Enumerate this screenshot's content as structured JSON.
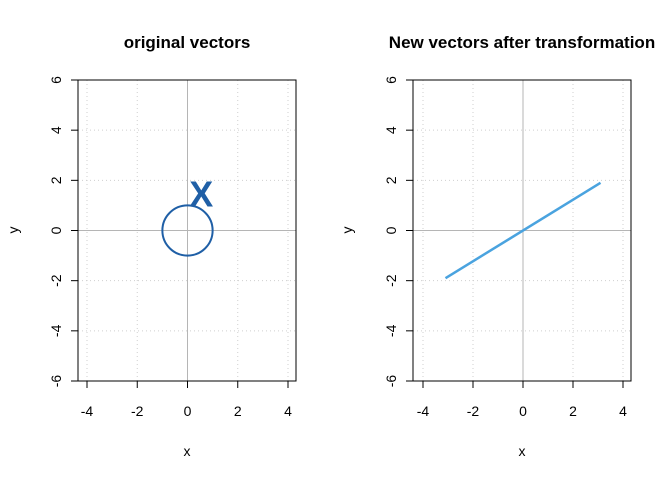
{
  "chart_data": [
    {
      "type": "line",
      "title": "original vectors",
      "xlabel": "x",
      "ylabel": "y",
      "xlim": [
        -4.4,
        4.4
      ],
      "ylim": [
        -6,
        6
      ],
      "xticks": [
        "-4",
        "-2",
        "0",
        "2",
        "4"
      ],
      "yticks": [
        "-6",
        "-4",
        "-2",
        "0",
        "2",
        "4",
        "6"
      ],
      "grid": true,
      "series": [
        {
          "shape": "circle",
          "center": [
            0,
            0
          ],
          "radius": 1,
          "color": "#1f5fa6"
        }
      ],
      "annotations": [
        {
          "text": "X",
          "x": 0.55,
          "y": 1.45,
          "color": "#1f5fa6"
        }
      ]
    },
    {
      "type": "line",
      "title": "New vectors after transformation",
      "xlabel": "x",
      "ylabel": "y",
      "xlim": [
        -4.4,
        4.4
      ],
      "ylim": [
        -6,
        6
      ],
      "xticks": [
        "-4",
        "-2",
        "0",
        "2",
        "4"
      ],
      "yticks": [
        "-6",
        "-4",
        "-2",
        "0",
        "2",
        "4",
        "6"
      ],
      "grid": true,
      "series": [
        {
          "shape": "segment",
          "x": [
            -3.1,
            3.1
          ],
          "y": [
            -1.9,
            1.9
          ],
          "color": "#4aa3df"
        }
      ],
      "annotations": []
    }
  ]
}
